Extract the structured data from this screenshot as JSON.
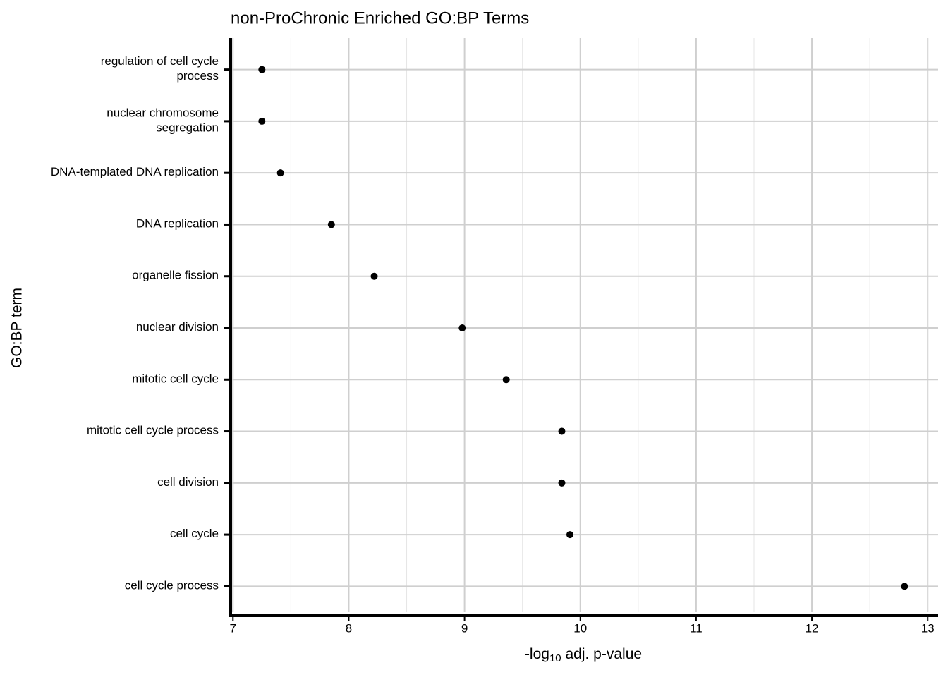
{
  "chart_data": {
    "type": "dot",
    "title": "non-ProChronic Enriched GO:BP Terms",
    "xlabel": {
      "main": "-log",
      "sub": "10",
      "rest": " adj. p-value"
    },
    "ylabel": "GO:BP term",
    "categories": [
      "regulation of cell cycle\nprocess",
      "nuclear chromosome\nsegregation",
      "DNA-templated DNA replication",
      "DNA replication",
      "organelle fission",
      "nuclear division",
      "mitotic cell cycle",
      "mitotic cell cycle process",
      "cell division",
      "cell cycle",
      "cell cycle process"
    ],
    "values": [
      7.25,
      7.25,
      7.41,
      7.85,
      8.22,
      8.98,
      9.36,
      9.84,
      9.84,
      9.91,
      12.8
    ],
    "color": "#000000",
    "xlim": [
      6.98,
      13.09
    ],
    "xticks": [
      7,
      8,
      9,
      10,
      11,
      12,
      13
    ],
    "minor_xticks": [
      7.5,
      8.5,
      9.5,
      10.5,
      11.5,
      12.5
    ],
    "grid": true
  }
}
